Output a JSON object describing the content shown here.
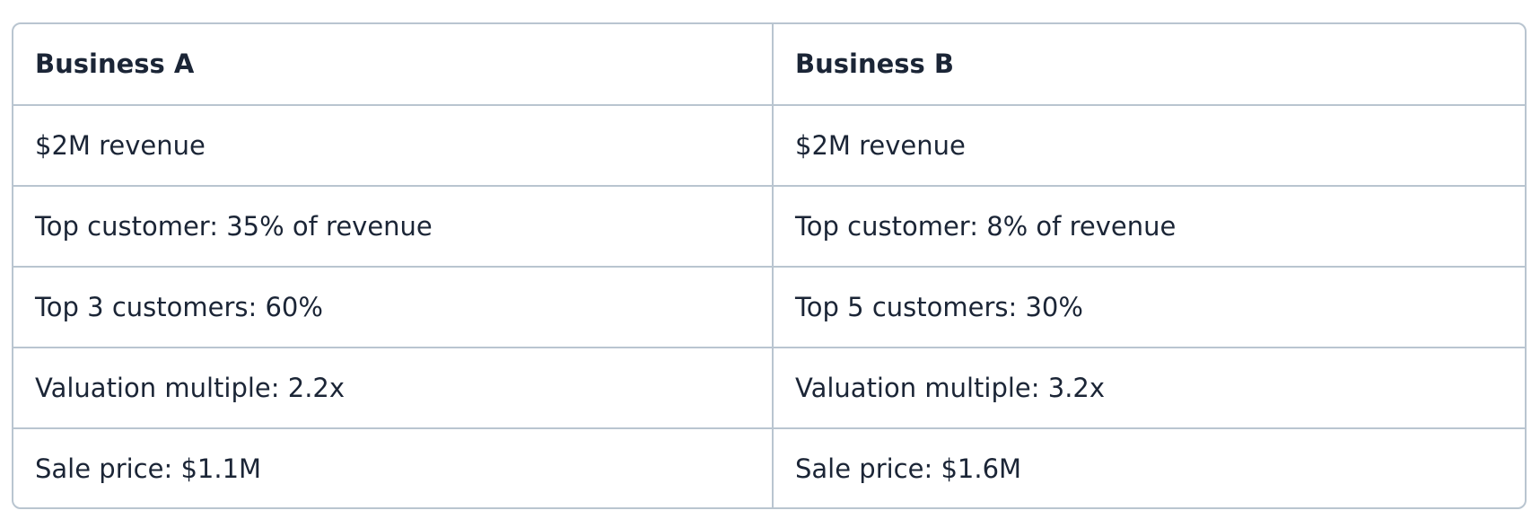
{
  "table": {
    "headers": [
      "Business A",
      "Business B"
    ],
    "rows": [
      [
        "$2M revenue",
        "$2M revenue"
      ],
      [
        "Top customer: 35% of revenue",
        "Top customer: 8% of revenue"
      ],
      [
        "Top 3 customers: 60%",
        "Top 5 customers: 30%"
      ],
      [
        "Valuation multiple: 2.2x",
        "Valuation multiple: 3.2x"
      ],
      [
        "Sale price: $1.1M",
        "Sale price: $1.6M"
      ]
    ]
  },
  "colors": {
    "border": "#b9c5d0",
    "text": "#1b2536",
    "background": "#ffffff"
  }
}
